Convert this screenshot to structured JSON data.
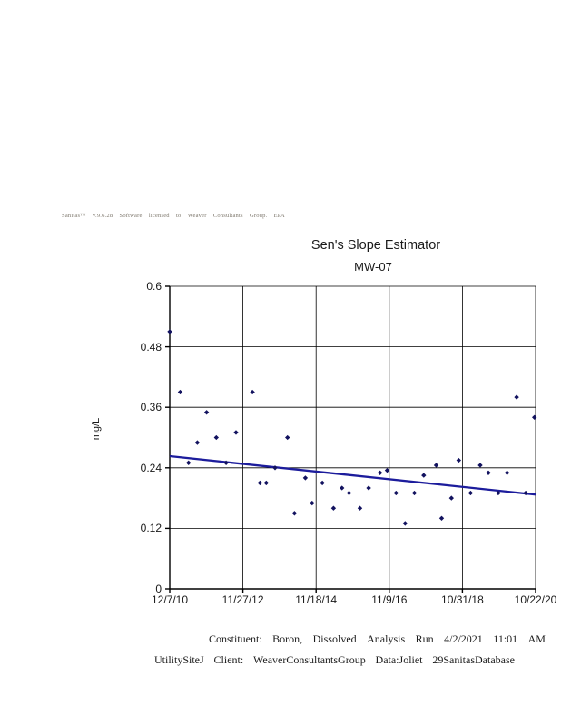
{
  "header": {
    "license_segments": [
      "Sanitas™",
      "v.9.6.28",
      "Software",
      "licensed",
      "to",
      "Weaver",
      "Consultants",
      "Group.",
      "EPA"
    ]
  },
  "chart_data": {
    "type": "scatter",
    "title": "Sen's Slope Estimator",
    "subtitle": "MW-07",
    "ylabel": "mg/L",
    "ylim": [
      0,
      0.6
    ],
    "y_tick_labels": [
      "0.6",
      "0.48",
      "0.36",
      "0.24",
      "0.12",
      "0"
    ],
    "x_tick_labels": [
      "12/7/10",
      "11/27/12",
      "11/18/14",
      "11/9/16",
      "10/31/18",
      "10/22/20"
    ],
    "x_range": [
      "2010-12-07",
      "2020-10-22"
    ],
    "grid": true,
    "legend": "none",
    "points": [
      {
        "date": "2010-12-07",
        "value": 0.51
      },
      {
        "date": "2011-03-20",
        "value": 0.39
      },
      {
        "date": "2011-06-10",
        "value": 0.25
      },
      {
        "date": "2011-09-05",
        "value": 0.29
      },
      {
        "date": "2011-12-05",
        "value": 0.35
      },
      {
        "date": "2012-03-10",
        "value": 0.3
      },
      {
        "date": "2012-06-15",
        "value": 0.25
      },
      {
        "date": "2012-09-20",
        "value": 0.31
      },
      {
        "date": "2013-03-01",
        "value": 0.39
      },
      {
        "date": "2013-05-15",
        "value": 0.21
      },
      {
        "date": "2013-07-15",
        "value": 0.21
      },
      {
        "date": "2013-10-10",
        "value": 0.24
      },
      {
        "date": "2014-02-10",
        "value": 0.3
      },
      {
        "date": "2014-04-20",
        "value": 0.15
      },
      {
        "date": "2014-08-05",
        "value": 0.22
      },
      {
        "date": "2014-10-10",
        "value": 0.17
      },
      {
        "date": "2015-01-20",
        "value": 0.21
      },
      {
        "date": "2015-05-10",
        "value": 0.16
      },
      {
        "date": "2015-08-01",
        "value": 0.2
      },
      {
        "date": "2015-10-10",
        "value": 0.19
      },
      {
        "date": "2016-01-25",
        "value": 0.16
      },
      {
        "date": "2016-04-20",
        "value": 0.2
      },
      {
        "date": "2016-08-10",
        "value": 0.23
      },
      {
        "date": "2016-10-20",
        "value": 0.235
      },
      {
        "date": "2017-01-15",
        "value": 0.19
      },
      {
        "date": "2017-04-15",
        "value": 0.13
      },
      {
        "date": "2017-07-15",
        "value": 0.19
      },
      {
        "date": "2017-10-15",
        "value": 0.225
      },
      {
        "date": "2018-02-15",
        "value": 0.245
      },
      {
        "date": "2018-04-10",
        "value": 0.14
      },
      {
        "date": "2018-07-15",
        "value": 0.18
      },
      {
        "date": "2018-09-25",
        "value": 0.255
      },
      {
        "date": "2019-01-20",
        "value": 0.19
      },
      {
        "date": "2019-04-25",
        "value": 0.245
      },
      {
        "date": "2019-07-15",
        "value": 0.23
      },
      {
        "date": "2019-10-20",
        "value": 0.19
      },
      {
        "date": "2020-01-15",
        "value": 0.23
      },
      {
        "date": "2020-04-18",
        "value": 0.38
      },
      {
        "date": "2020-07-16",
        "value": 0.19
      },
      {
        "date": "2020-10-10",
        "value": 0.34
      }
    ],
    "trend_line": {
      "name": "Sen's slope trend",
      "start": {
        "date": "2010-12-07",
        "value": 0.263
      },
      "end": {
        "date": "2020-10-22",
        "value": 0.187
      }
    },
    "colors": {
      "points": "#12125f",
      "trend": "#1c1c9c",
      "grid": "#000000"
    }
  },
  "footer": {
    "line1_segments": [
      "Constituent:",
      "Boron,",
      "Dissolved",
      "Analysis",
      "Run",
      "4/2/2021",
      "11:01",
      "AM"
    ],
    "line2_segments": [
      "UtilitySiteJ",
      "Client:",
      "WeaverConsultantsGroup",
      "Data:Joliet",
      "29SanitasDatabase"
    ]
  }
}
